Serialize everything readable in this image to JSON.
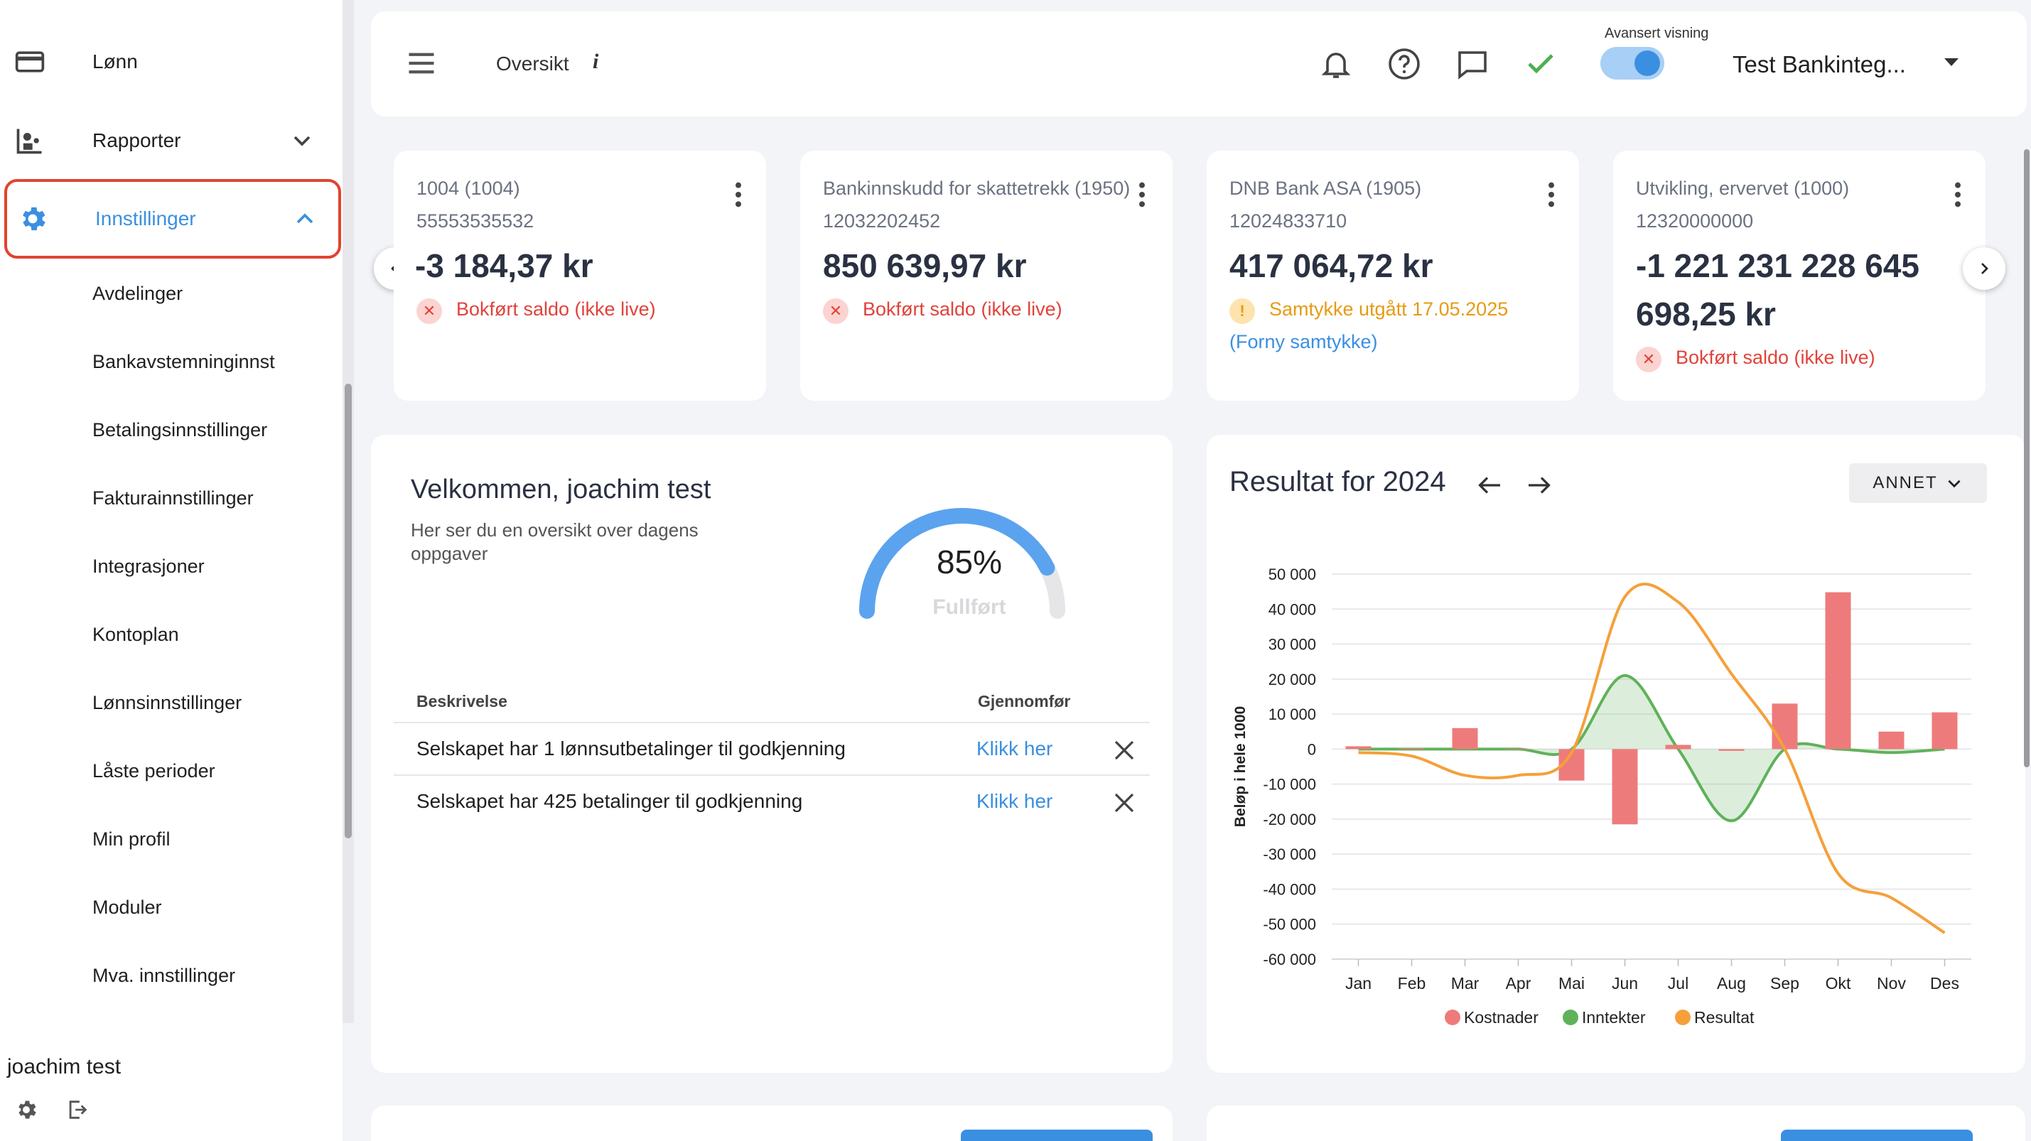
{
  "sidebar": {
    "items": [
      {
        "label": "Lønn",
        "icon": "card-icon"
      },
      {
        "label": "Rapporter",
        "icon": "report-icon"
      },
      {
        "label": "Innstillinger",
        "icon": "gear-icon"
      }
    ],
    "submenu": [
      "Avdelinger",
      "Bankavstemninginnst",
      "Betalingsinnstillinger",
      "Fakturainnstillinger",
      "Integrasjoner",
      "Kontoplan",
      "Lønnsinnstillinger",
      "Låste perioder",
      "Min profil",
      "Moduler",
      "Mva. innstillinger"
    ],
    "user": "joachim test"
  },
  "topbar": {
    "title": "Oversikt",
    "info": "i",
    "advanced_label": "Avansert visning",
    "advanced_on": true,
    "company": "Test Bankinteg..."
  },
  "accounts": [
    {
      "name": "1004 (1004)",
      "number": "55553535532",
      "balance": "-3 184,37 kr",
      "status": "Bokført saldo (ikke live)",
      "status_type": "error"
    },
    {
      "name": "Bankinnskudd for skattetrekk (1950)",
      "number": "12032202452",
      "balance": "850 639,97 kr",
      "status": "Bokført saldo (ikke live)",
      "status_type": "error"
    },
    {
      "name": "DNB Bank ASA (1905)",
      "number": "12024833710",
      "balance": "417 064,72 kr",
      "status": "Samtykke utgått 17.05.2025",
      "status_type": "warning",
      "link": "(Forny samtykke)"
    },
    {
      "name": "Utvikling, ervervet (1000)",
      "number": "12320000000",
      "balance_line1": "-1 221 231 228 645",
      "balance_line2": "698,25 kr",
      "status": "Bokført saldo (ikke live)",
      "status_type": "error"
    }
  ],
  "welcome": {
    "title": "Velkommen, joachim test",
    "subtitle": "Her ser du en oversikt over dagens oppgaver",
    "progress_pct": 85,
    "progress_text": "85%",
    "progress_label": "Fullført",
    "table": {
      "headers": [
        "Beskrivelse",
        "Gjennomfør"
      ],
      "rows": [
        {
          "text": "Selskapet har 1 lønnsutbetalinger til godkjenning",
          "link": "Klikk her"
        },
        {
          "text": "Selskapet har 425 betalinger til godkjenning",
          "link": "Klikk her"
        }
      ]
    }
  },
  "chart_data": {
    "type": "bar",
    "title": "Resultat for 2024",
    "filter_label": "ANNET",
    "ylabel": "Beløp i hele 1000",
    "ylim": [
      -60000,
      50000
    ],
    "yticks": [
      "50 000",
      "40 000",
      "30 000",
      "20 000",
      "10 000",
      "0",
      "-10 000",
      "-20 000",
      "-30 000",
      "-40 000",
      "-50 000",
      "-60 000"
    ],
    "ytick_values": [
      50000,
      40000,
      30000,
      20000,
      10000,
      0,
      -10000,
      -20000,
      -30000,
      -40000,
      -50000,
      -60000
    ],
    "categories": [
      "Jan",
      "Feb",
      "Mar",
      "Apr",
      "Mai",
      "Jun",
      "Jul",
      "Aug",
      "Sep",
      "Okt",
      "Nov",
      "Des"
    ],
    "series": [
      {
        "name": "Kostnader",
        "kind": "bar",
        "color": "#ee7b7b",
        "values": [
          800,
          300,
          6000,
          0,
          -9000,
          -21500,
          1200,
          -500,
          13000,
          44800,
          5000,
          10500
        ]
      },
      {
        "name": "Inntekter",
        "kind": "area",
        "color": "#5fb25a",
        "values": [
          0,
          0,
          0,
          0,
          0,
          21000,
          0,
          -20500,
          0,
          0,
          -1000,
          0
        ]
      },
      {
        "name": "Resultat",
        "kind": "line",
        "color": "#f5a03a",
        "values": [
          -1000,
          -2000,
          -7500,
          -7500,
          -1000,
          43500,
          42000,
          21500,
          0,
          -35500,
          -42500,
          -52500
        ]
      }
    ],
    "legend_position": "bottom",
    "grid": true
  },
  "colors": {
    "accent": "#3b8fe0",
    "error": "#e0433a",
    "warning": "#e79a12",
    "success": "#4caf50"
  }
}
